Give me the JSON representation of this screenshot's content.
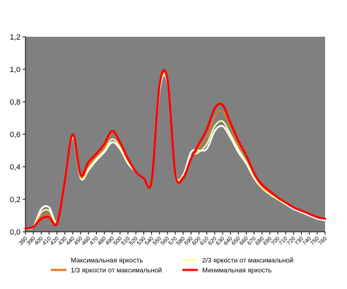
{
  "chart_data": {
    "type": "line",
    "title": "",
    "xlabel": "",
    "ylabel": "",
    "xlim": [
      380,
      760
    ],
    "ylim": [
      0,
      1.2
    ],
    "y_ticks": [
      "0,0",
      "0,2",
      "0,4",
      "0,6",
      "0,8",
      "1,0",
      "1,2"
    ],
    "x_ticks": [
      "380",
      "390",
      "400",
      "410",
      "420",
      "430",
      "440",
      "450",
      "460",
      "470",
      "480",
      "490",
      "500",
      "510",
      "520",
      "530",
      "540",
      "550",
      "560",
      "570",
      "580",
      "590",
      "600",
      "610",
      "620",
      "630",
      "640",
      "650",
      "660",
      "670",
      "680",
      "690",
      "700",
      "710",
      "720",
      "730",
      "740",
      "750",
      "760"
    ],
    "grid": false,
    "plot_background": "#808080",
    "legend_position": "bottom",
    "x": [
      380,
      390,
      400,
      410,
      420,
      430,
      440,
      450,
      460,
      470,
      480,
      490,
      500,
      510,
      520,
      530,
      540,
      550,
      560,
      570,
      580,
      590,
      600,
      610,
      620,
      630,
      640,
      650,
      660,
      670,
      680,
      690,
      700,
      710,
      720,
      730,
      740,
      750,
      760
    ],
    "series": [
      {
        "name": "Максимальная яркость",
        "color": "#ffffff",
        "values": [
          0.02,
          0.03,
          0.14,
          0.15,
          0.06,
          0.3,
          0.59,
          0.33,
          0.38,
          0.44,
          0.49,
          0.55,
          0.51,
          0.42,
          0.37,
          0.33,
          0.31,
          0.87,
          0.92,
          0.37,
          0.35,
          0.49,
          0.5,
          0.51,
          0.62,
          0.65,
          0.58,
          0.49,
          0.42,
          0.33,
          0.27,
          0.23,
          0.2,
          0.17,
          0.14,
          0.12,
          0.1,
          0.08,
          0.07
        ]
      },
      {
        "name": "2/3 яркости от максимальной",
        "color": "#ffffa0",
        "values": [
          0.02,
          0.03,
          0.12,
          0.13,
          0.06,
          0.3,
          0.58,
          0.33,
          0.39,
          0.45,
          0.5,
          0.57,
          0.52,
          0.43,
          0.37,
          0.33,
          0.31,
          0.88,
          0.93,
          0.37,
          0.34,
          0.46,
          0.49,
          0.54,
          0.65,
          0.68,
          0.6,
          0.51,
          0.43,
          0.34,
          0.27,
          0.23,
          0.2,
          0.17,
          0.15,
          0.13,
          0.11,
          0.09,
          0.08
        ]
      },
      {
        "name": "1/3 яркости от максимальной",
        "color": "#e8761c",
        "values": [
          0.02,
          0.03,
          0.1,
          0.1,
          0.06,
          0.31,
          0.6,
          0.34,
          0.41,
          0.47,
          0.52,
          0.61,
          0.54,
          0.44,
          0.37,
          0.33,
          0.31,
          0.89,
          0.93,
          0.36,
          0.34,
          0.45,
          0.52,
          0.58,
          0.71,
          0.74,
          0.65,
          0.54,
          0.46,
          0.35,
          0.28,
          0.24,
          0.21,
          0.18,
          0.15,
          0.13,
          0.11,
          0.09,
          0.08
        ]
      },
      {
        "name": "Минимальная яркость",
        "color": "#ff0000",
        "values": [
          0.02,
          0.03,
          0.08,
          0.09,
          0.05,
          0.31,
          0.6,
          0.35,
          0.43,
          0.48,
          0.54,
          0.62,
          0.55,
          0.45,
          0.37,
          0.33,
          0.31,
          0.9,
          0.94,
          0.36,
          0.33,
          0.45,
          0.54,
          0.63,
          0.76,
          0.78,
          0.67,
          0.56,
          0.47,
          0.36,
          0.29,
          0.25,
          0.21,
          0.18,
          0.15,
          0.13,
          0.11,
          0.09,
          0.08
        ]
      }
    ]
  }
}
